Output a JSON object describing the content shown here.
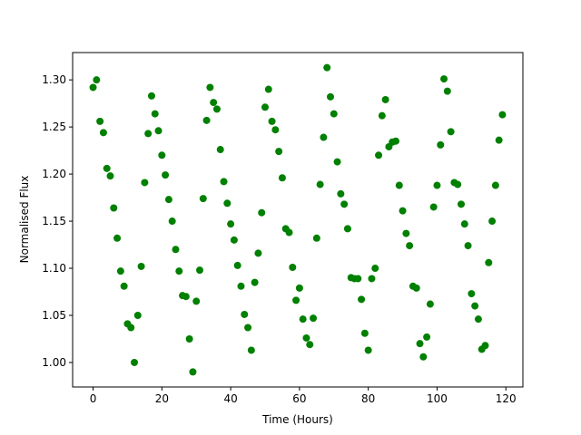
{
  "chart_data": {
    "type": "scatter",
    "x_label": "Time (Hours)",
    "y_label": "Normalised Flux",
    "color": "#008000",
    "x": [
      0,
      1,
      2,
      3,
      4,
      5,
      6,
      7,
      8,
      9,
      10,
      11,
      12,
      13,
      14,
      15,
      16,
      17,
      18,
      19,
      20,
      21,
      22,
      23,
      24,
      25,
      26,
      27,
      28,
      29,
      30,
      31,
      32,
      33,
      34,
      35,
      36,
      37,
      38,
      39,
      40,
      41,
      42,
      43,
      44,
      45,
      46,
      47,
      48,
      49,
      50,
      51,
      52,
      53,
      54,
      55,
      56,
      57,
      58,
      59,
      60,
      61,
      62,
      63,
      64,
      65,
      66,
      67,
      68,
      69,
      70,
      71,
      72,
      73,
      74,
      75,
      76,
      77,
      78,
      79,
      80,
      81,
      82,
      83,
      84,
      85,
      86,
      87,
      88,
      89,
      90,
      91,
      92,
      93,
      94,
      95,
      96,
      97,
      98,
      99,
      100,
      101,
      102,
      103,
      104,
      105,
      106,
      107,
      108,
      109,
      110,
      111,
      112,
      113,
      114,
      115,
      116,
      117,
      118,
      119
    ],
    "values": [
      1.292,
      1.3,
      1.256,
      1.244,
      1.206,
      1.198,
      1.164,
      1.132,
      1.097,
      1.081,
      1.041,
      1.037,
      1.0,
      1.05,
      1.102,
      1.191,
      1.243,
      1.283,
      1.264,
      1.246,
      1.22,
      1.199,
      1.173,
      1.15,
      1.12,
      1.097,
      1.071,
      1.07,
      1.025,
      0.99,
      1.065,
      1.098,
      1.174,
      1.257,
      1.292,
      1.276,
      1.269,
      1.226,
      1.192,
      1.169,
      1.147,
      1.13,
      1.103,
      1.081,
      1.051,
      1.037,
      1.013,
      1.085,
      1.116,
      1.159,
      1.271,
      1.29,
      1.256,
      1.247,
      1.224,
      1.196,
      1.142,
      1.138,
      1.101,
      1.066,
      1.079,
      1.046,
      1.026,
      1.019,
      1.047,
      1.132,
      1.189,
      1.239,
      1.313,
      1.282,
      1.264,
      1.213,
      1.179,
      1.168,
      1.142,
      1.09,
      1.089,
      1.089,
      1.067,
      1.031,
      1.013,
      1.089,
      1.1,
      1.22,
      1.262,
      1.279,
      1.229,
      1.234,
      1.235,
      1.188,
      1.161,
      1.137,
      1.124,
      1.081,
      1.079,
      1.02,
      1.006,
      1.027,
      1.062,
      1.165,
      1.188,
      1.231,
      1.301,
      1.288,
      1.245,
      1.191,
      1.189,
      1.168,
      1.147,
      1.124,
      1.073,
      1.06,
      1.046,
      1.014,
      1.018,
      1.106,
      1.15,
      1.188,
      1.236,
      1.263
    ],
    "xlim": [
      -5.95,
      124.95
    ],
    "xticks": [
      0,
      20,
      40,
      60,
      80,
      100,
      120
    ],
    "ylim": [
      0.974,
      1.329
    ],
    "yticks": [
      {
        "value": 1.0,
        "label": "1.00"
      },
      {
        "value": 1.05,
        "label": "1.05"
      },
      {
        "value": 1.1,
        "label": "1.10"
      },
      {
        "value": 1.15,
        "label": "1.15"
      },
      {
        "value": 1.2,
        "label": "1.20"
      },
      {
        "value": 1.25,
        "label": "1.25"
      },
      {
        "value": 1.3,
        "label": "1.30"
      }
    ]
  }
}
